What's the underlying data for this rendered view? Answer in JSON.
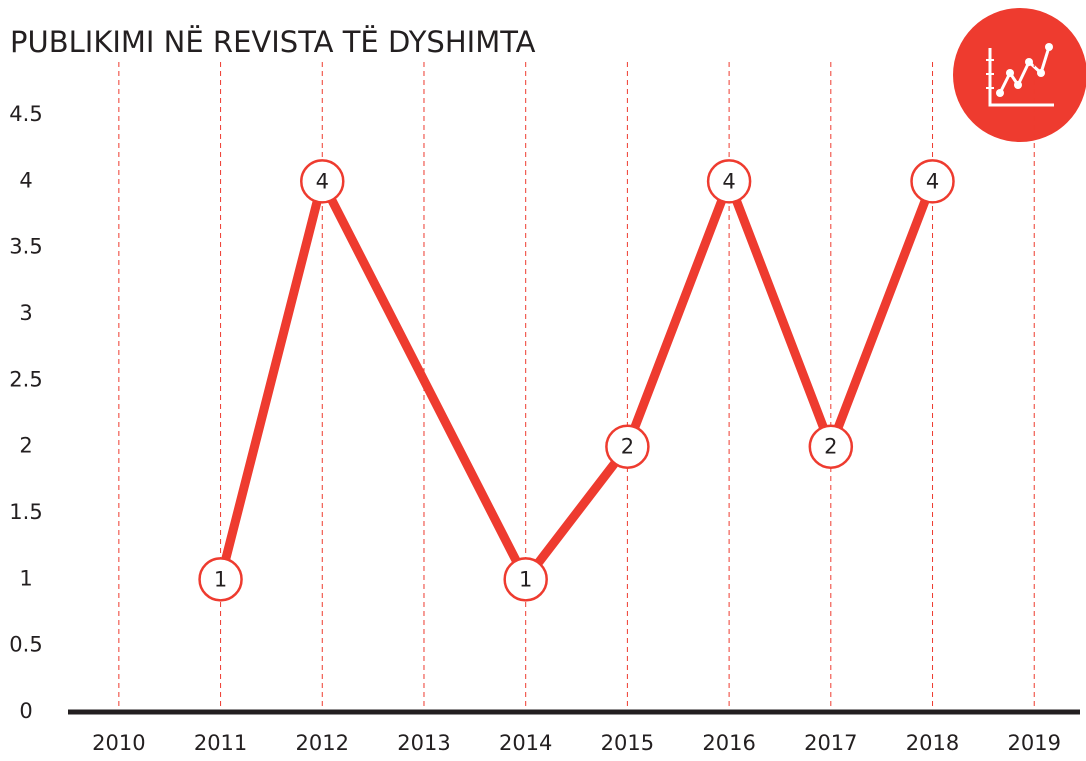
{
  "chart_data": {
    "type": "line",
    "title": "PUBLIKIMI NË REVISTA TË DYSHIMTA",
    "x": [
      2011,
      2012,
      2014,
      2015,
      2016,
      2017,
      2018
    ],
    "series": [
      {
        "color": "#ee3b2f",
        "values": [
          1,
          4,
          1,
          2,
          4,
          2,
          4
        ]
      }
    ],
    "xlim": [
      2009.5,
      2019.45
    ],
    "xticks": [
      2010,
      2011,
      2012,
      2013,
      2014,
      2015,
      2016,
      2017,
      2018,
      2019
    ],
    "ylim": [
      0,
      4.9
    ],
    "yticks": [
      0,
      0.5,
      1,
      1.5,
      2,
      2.5,
      3,
      3.5,
      4,
      4.5
    ],
    "grid": true
  }
}
